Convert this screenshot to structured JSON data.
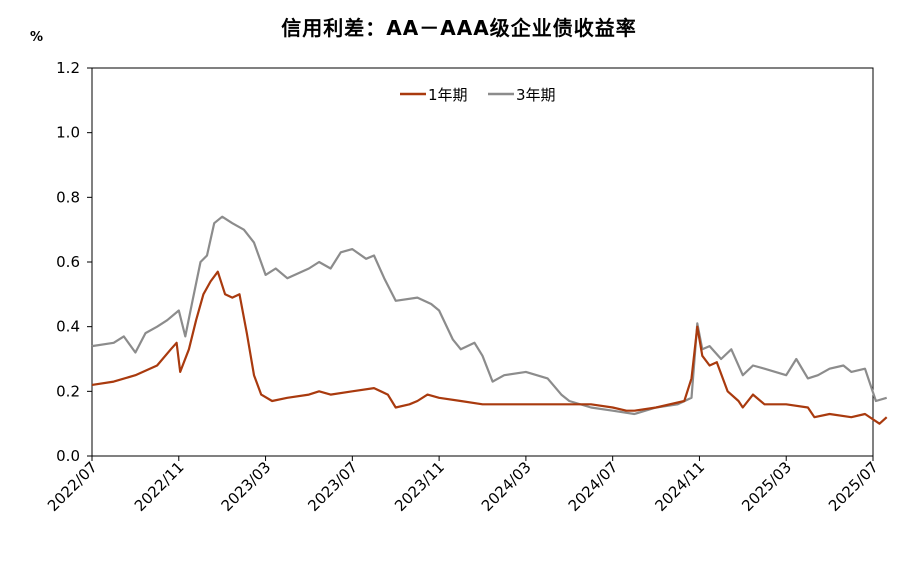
{
  "chart_data": {
    "type": "line",
    "title": "信用利差：AA－AAA级企业债收益率",
    "ylabel": "%",
    "xlabel": "",
    "ylim": [
      0,
      1.2
    ],
    "yticks": [
      "0.0",
      "0.2",
      "0.4",
      "0.6",
      "0.8",
      "1.0",
      "1.2"
    ],
    "xlim": [
      "2022-07",
      "2025-07"
    ],
    "xticks": [
      "2022/07",
      "2022/11",
      "2023/03",
      "2023/07",
      "2023/11",
      "2024/03",
      "2024/07",
      "2024/11",
      "2025/03",
      "2025/07"
    ],
    "legend_position": "top-center",
    "grid": false,
    "series": [
      {
        "name": "1年期",
        "color": "#a93a0e",
        "points": [
          [
            "2022-07",
            0.22
          ],
          [
            "2022-08",
            0.23
          ],
          [
            "2022-09",
            0.25
          ],
          [
            "2022-10",
            0.28
          ],
          [
            "2022-10-20",
            0.33
          ],
          [
            "2022-10-28",
            0.35
          ],
          [
            "2022-11-03",
            0.26
          ],
          [
            "2022-11-15",
            0.33
          ],
          [
            "2022-11-25",
            0.42
          ],
          [
            "2022-12-05",
            0.5
          ],
          [
            "2022-12-15",
            0.54
          ],
          [
            "2022-12-25",
            0.57
          ],
          [
            "2023-01-05",
            0.5
          ],
          [
            "2023-01-15",
            0.49
          ],
          [
            "2023-01-25",
            0.5
          ],
          [
            "2023-02-05",
            0.38
          ],
          [
            "2023-02-15",
            0.25
          ],
          [
            "2023-02-25",
            0.19
          ],
          [
            "2023-03-10",
            0.17
          ],
          [
            "2023-04",
            0.18
          ],
          [
            "2023-05",
            0.19
          ],
          [
            "2023-05-15",
            0.2
          ],
          [
            "2023-06",
            0.19
          ],
          [
            "2023-07",
            0.2
          ],
          [
            "2023-08",
            0.21
          ],
          [
            "2023-08-20",
            0.19
          ],
          [
            "2023-09",
            0.15
          ],
          [
            "2023-09-20",
            0.16
          ],
          [
            "2023-10",
            0.17
          ],
          [
            "2023-10-15",
            0.19
          ],
          [
            "2023-11",
            0.18
          ],
          [
            "2023-12",
            0.17
          ],
          [
            "2024-01",
            0.16
          ],
          [
            "2024-02",
            0.16
          ],
          [
            "2024-03",
            0.16
          ],
          [
            "2024-04",
            0.16
          ],
          [
            "2024-05",
            0.16
          ],
          [
            "2024-06",
            0.16
          ],
          [
            "2024-07",
            0.15
          ],
          [
            "2024-07-20",
            0.14
          ],
          [
            "2024-08",
            0.14
          ],
          [
            "2024-09",
            0.15
          ],
          [
            "2024-10-10",
            0.17
          ],
          [
            "2024-10-20",
            0.24
          ],
          [
            "2024-10-28",
            0.4
          ],
          [
            "2024-11-05",
            0.31
          ],
          [
            "2024-11-15",
            0.28
          ],
          [
            "2024-11-25",
            0.29
          ],
          [
            "2024-12-10",
            0.2
          ],
          [
            "2024-12-25",
            0.17
          ],
          [
            "2025-01",
            0.15
          ],
          [
            "2025-01-15",
            0.19
          ],
          [
            "2025-02",
            0.16
          ],
          [
            "2025-03",
            0.16
          ],
          [
            "2025-04",
            0.15
          ],
          [
            "2025-04-10",
            0.12
          ],
          [
            "2025-05",
            0.13
          ],
          [
            "2025-06",
            0.12
          ],
          [
            "2025-06-20",
            0.13
          ],
          [
            "2025-07-10",
            0.1
          ],
          [
            "2025-07-20",
            0.12
          ]
        ]
      },
      {
        "name": "3年期",
        "color": "#8c8c8c",
        "points": [
          [
            "2022-07",
            0.34
          ],
          [
            "2022-08",
            0.35
          ],
          [
            "2022-08-15",
            0.37
          ],
          [
            "2022-09",
            0.32
          ],
          [
            "2022-09-15",
            0.38
          ],
          [
            "2022-10",
            0.4
          ],
          [
            "2022-10-15",
            0.42
          ],
          [
            "2022-11",
            0.45
          ],
          [
            "2022-11-10",
            0.37
          ],
          [
            "2022-11-20",
            0.48
          ],
          [
            "2022-12-01",
            0.6
          ],
          [
            "2022-12-10",
            0.62
          ],
          [
            "2022-12-20",
            0.72
          ],
          [
            "2023-01-01",
            0.74
          ],
          [
            "2023-01-15",
            0.72
          ],
          [
            "2023-02-01",
            0.7
          ],
          [
            "2023-02-15",
            0.66
          ],
          [
            "2023-03-01",
            0.56
          ],
          [
            "2023-03-15",
            0.58
          ],
          [
            "2023-04",
            0.55
          ],
          [
            "2023-05",
            0.58
          ],
          [
            "2023-05-15",
            0.6
          ],
          [
            "2023-06",
            0.58
          ],
          [
            "2023-06-15",
            0.63
          ],
          [
            "2023-07",
            0.64
          ],
          [
            "2023-07-20",
            0.61
          ],
          [
            "2023-08",
            0.62
          ],
          [
            "2023-08-15",
            0.55
          ],
          [
            "2023-09",
            0.48
          ],
          [
            "2023-10",
            0.49
          ],
          [
            "2023-10-20",
            0.47
          ],
          [
            "2023-11",
            0.45
          ],
          [
            "2023-11-20",
            0.36
          ],
          [
            "2023-12",
            0.33
          ],
          [
            "2023-12-20",
            0.35
          ],
          [
            "2024-01",
            0.31
          ],
          [
            "2024-01-15",
            0.23
          ],
          [
            "2024-02",
            0.25
          ],
          [
            "2024-03",
            0.26
          ],
          [
            "2024-04",
            0.24
          ],
          [
            "2024-04-20",
            0.19
          ],
          [
            "2024-05",
            0.17
          ],
          [
            "2024-06",
            0.15
          ],
          [
            "2024-07",
            0.14
          ],
          [
            "2024-08",
            0.13
          ],
          [
            "2024-09",
            0.15
          ],
          [
            "2024-10",
            0.16
          ],
          [
            "2024-10-20",
            0.18
          ],
          [
            "2024-10-28",
            0.41
          ],
          [
            "2024-11-05",
            0.33
          ],
          [
            "2024-11-15",
            0.34
          ],
          [
            "2024-12",
            0.3
          ],
          [
            "2024-12-15",
            0.33
          ],
          [
            "2025-01",
            0.25
          ],
          [
            "2025-01-15",
            0.28
          ],
          [
            "2025-02",
            0.27
          ],
          [
            "2025-03",
            0.25
          ],
          [
            "2025-03-15",
            0.3
          ],
          [
            "2025-04",
            0.24
          ],
          [
            "2025-04-15",
            0.25
          ],
          [
            "2025-05",
            0.27
          ],
          [
            "2025-05-20",
            0.28
          ],
          [
            "2025-06",
            0.26
          ],
          [
            "2025-06-20",
            0.27
          ],
          [
            "2025-07-05",
            0.17
          ],
          [
            "2025-07-20",
            0.18
          ]
        ]
      }
    ]
  }
}
